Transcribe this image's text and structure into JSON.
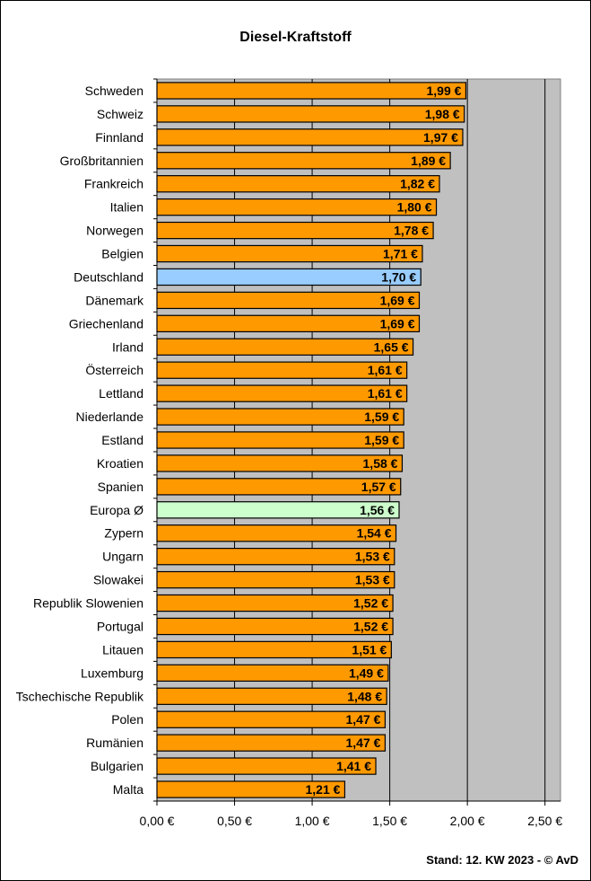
{
  "title": "Diesel-Kraftstoff",
  "footer": "Stand: 12. KW 2023 - © AvD",
  "colors": {
    "plot_bg": "#c0c0c0",
    "bar_default": "#ff9900",
    "bar_germany": "#99ccff",
    "bar_europe": "#ccffcc",
    "gridline": "#000000"
  },
  "chart_data": {
    "type": "bar",
    "orientation": "horizontal",
    "title": "Diesel-Kraftstoff",
    "xlim": [
      0,
      2.6
    ],
    "x_ticks": [
      0,
      0.5,
      1.0,
      1.5,
      2.0,
      2.5
    ],
    "x_tick_labels": [
      "0,00 €",
      "0,50 €",
      "1,00 €",
      "1,50 €",
      "2,00 €",
      "2,50 €"
    ],
    "grid": "vertical major gridlines",
    "categories": [
      "Schweden",
      "Schweiz",
      "Finnland",
      "Großbritannien",
      "Frankreich",
      "Italien",
      "Norwegen",
      "Belgien",
      "Deutschland",
      "Dänemark",
      "Griechenland",
      "Irland",
      "Österreich",
      "Lettland",
      "Niederlande",
      "Estland",
      "Kroatien",
      "Spanien",
      "Europa Ø",
      "Zypern",
      "Ungarn",
      "Slowakei",
      "Republik Slowenien",
      "Portugal",
      "Litauen",
      "Luxemburg",
      "Tschechische Republik",
      "Polen",
      "Rumänien",
      "Bulgarien",
      "Malta"
    ],
    "values": [
      1.99,
      1.98,
      1.97,
      1.89,
      1.82,
      1.8,
      1.78,
      1.71,
      1.7,
      1.69,
      1.69,
      1.65,
      1.61,
      1.61,
      1.59,
      1.59,
      1.58,
      1.57,
      1.56,
      1.54,
      1.53,
      1.53,
      1.52,
      1.52,
      1.51,
      1.49,
      1.48,
      1.47,
      1.47,
      1.41,
      1.21
    ],
    "data_labels": [
      "1,99 €",
      "1,98 €",
      "1,97 €",
      "1,89 €",
      "1,82 €",
      "1,80 €",
      "1,78 €",
      "1,71 €",
      "1,70 €",
      "1,69 €",
      "1,69 €",
      "1,65 €",
      "1,61 €",
      "1,61 €",
      "1,59 €",
      "1,59 €",
      "1,58 €",
      "1,57 €",
      "1,56 €",
      "1,54 €",
      "1,53 €",
      "1,53 €",
      "1,52 €",
      "1,52 €",
      "1,51 €",
      "1,49 €",
      "1,48 €",
      "1,47 €",
      "1,47 €",
      "1,41 €",
      "1,21 €"
    ],
    "highlight": {
      "Deutschland": "#99ccff",
      "Europa Ø": "#ccffcc"
    }
  }
}
